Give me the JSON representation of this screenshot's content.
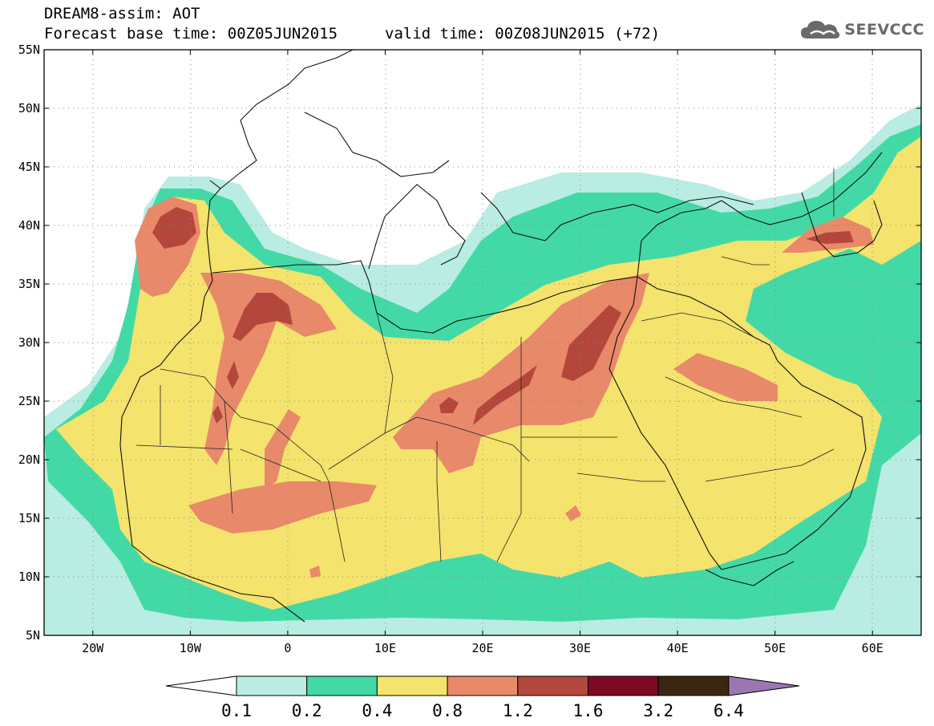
{
  "header": {
    "title_line1": "DREAM8-assim: AOT",
    "title_line2": "Forecast base time: 00Z05JUN2015",
    "valid_time": "valid time: 00Z08JUN2015 (+72)",
    "logo_text": "SEEVCCC",
    "logo_icon": "cloud-logo-icon"
  },
  "map": {
    "lon_range": [
      -25,
      65
    ],
    "lat_range": [
      5,
      55
    ],
    "lat_ticks": [
      {
        "value": 55,
        "label": "55N"
      },
      {
        "value": 50,
        "label": "50N"
      },
      {
        "value": 45,
        "label": "45N"
      },
      {
        "value": 40,
        "label": "40N"
      },
      {
        "value": 35,
        "label": "35N"
      },
      {
        "value": 30,
        "label": "30N"
      },
      {
        "value": 25,
        "label": "25N"
      },
      {
        "value": 20,
        "label": "20N"
      },
      {
        "value": 15,
        "label": "15N"
      },
      {
        "value": 10,
        "label": "10N"
      },
      {
        "value": 5,
        "label": "5N"
      }
    ],
    "lon_ticks": [
      {
        "value": -20,
        "label": "20W"
      },
      {
        "value": -10,
        "label": "10W"
      },
      {
        "value": 0,
        "label": "0"
      },
      {
        "value": 10,
        "label": "10E"
      },
      {
        "value": 20,
        "label": "20E"
      },
      {
        "value": 30,
        "label": "30E"
      },
      {
        "value": 40,
        "label": "40E"
      },
      {
        "value": 50,
        "label": "50E"
      },
      {
        "value": 60,
        "label": "60E"
      }
    ],
    "grid": "dotted"
  },
  "colorbar": {
    "labels": [
      "0.1",
      "0.2",
      "0.4",
      "0.8",
      "1.2",
      "1.6",
      "3.2",
      "6.4"
    ],
    "colors": [
      "#ffffff",
      "#b9ece3",
      "#43d9a6",
      "#f4e36c",
      "#e8896a",
      "#b3473c",
      "#7d0a23",
      "#3b2612",
      "#9b77b2"
    ]
  }
}
